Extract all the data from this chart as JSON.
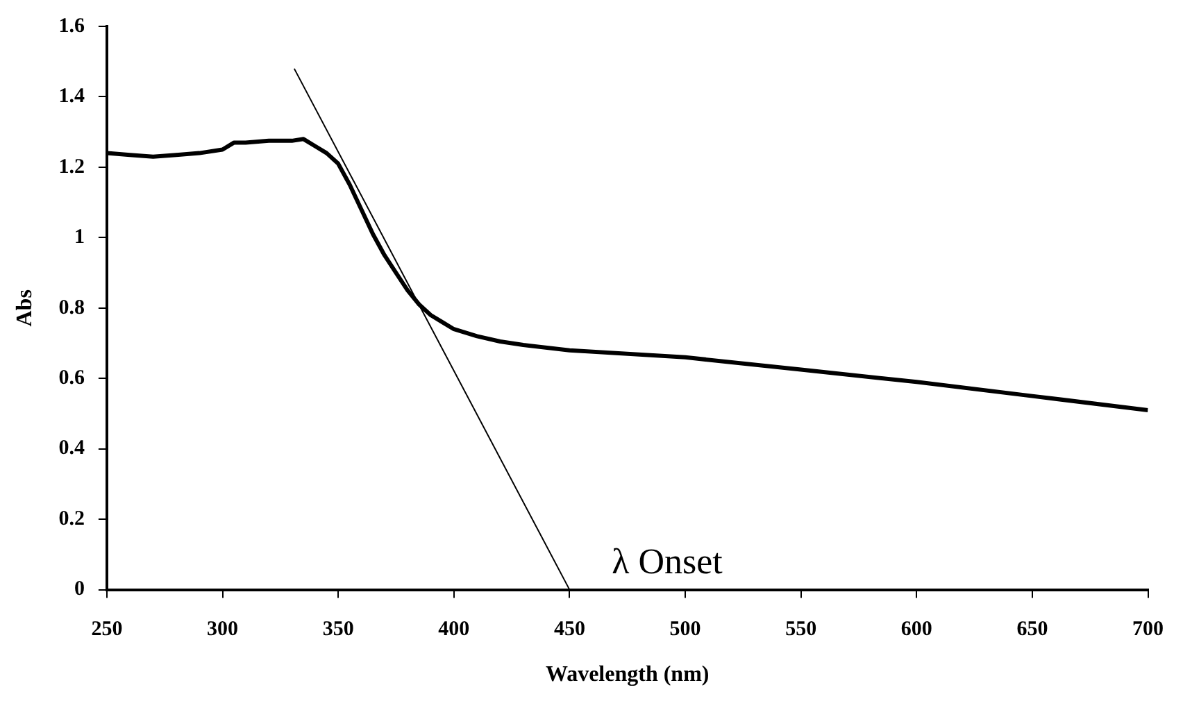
{
  "chart_data": {
    "type": "line",
    "xlabel": "Wavelength (nm)",
    "ylabel": "Abs",
    "xlim": [
      250,
      700
    ],
    "xticks": [
      250,
      300,
      350,
      400,
      450,
      500,
      550,
      600,
      650,
      700
    ],
    "ylim": [
      0,
      1.6
    ],
    "yticks": [
      0,
      0.2,
      0.4,
      0.6,
      0.8,
      1,
      1.2,
      1.4,
      1.6
    ],
    "marker": "none",
    "legend": false,
    "series": [
      {
        "color": "#000000",
        "x": [
          250,
          260,
          270,
          280,
          290,
          300,
          305,
          310,
          320,
          330,
          335,
          340,
          345,
          350,
          355,
          360,
          365,
          370,
          375,
          380,
          385,
          390,
          395,
          400,
          410,
          420,
          430,
          450,
          500,
          550,
          600,
          650,
          700
        ],
        "values": [
          1.24,
          1.235,
          1.23,
          1.235,
          1.24,
          1.25,
          1.27,
          1.27,
          1.275,
          1.275,
          1.28,
          1.26,
          1.24,
          1.21,
          1.15,
          1.08,
          1.01,
          0.95,
          0.9,
          0.85,
          0.81,
          0.78,
          0.76,
          0.74,
          0.72,
          0.705,
          0.695,
          0.68,
          0.66,
          0.625,
          0.59,
          0.55,
          0.51
        ]
      },
      {
        "color": "#000000",
        "x": [
          331,
          450
        ],
        "values": [
          1.48,
          0
        ]
      }
    ],
    "annotations": [
      "λ Onset"
    ]
  }
}
